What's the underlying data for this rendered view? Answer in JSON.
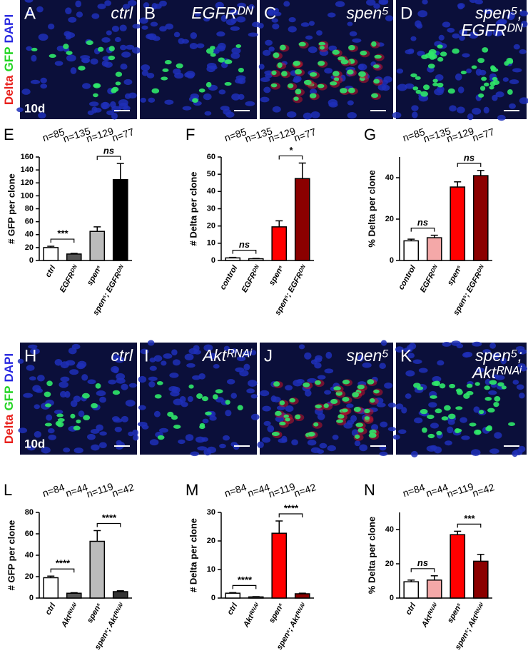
{
  "image_rows": [
    {
      "stain": [
        {
          "text": "Delta",
          "color": "#e8201c"
        },
        {
          "text": "GFP",
          "color": "#22d422"
        },
        {
          "text": "DAPI",
          "color": "#2a2ae0"
        }
      ],
      "timepoint": "10d",
      "panels": [
        {
          "letter": "A",
          "label": [
            "ctrl"
          ]
        },
        {
          "letter": "B",
          "label": [
            "EGFRᴰᴺ"
          ]
        },
        {
          "letter": "C",
          "label": [
            "spen⁵"
          ]
        },
        {
          "letter": "D",
          "label": [
            "spen⁵;",
            "EGFRᴰᴺ"
          ]
        }
      ]
    },
    {
      "stain": [
        {
          "text": "Delta",
          "color": "#e8201c"
        },
        {
          "text": "GFP",
          "color": "#22d422"
        },
        {
          "text": "DAPI",
          "color": "#2a2ae0"
        }
      ],
      "timepoint": "10d",
      "panels": [
        {
          "letter": "H",
          "label": [
            "ctrl"
          ]
        },
        {
          "letter": "I",
          "label": [
            "Aktᴿᴺᴬⁱ"
          ]
        },
        {
          "letter": "J",
          "label": [
            "spen⁵"
          ]
        },
        {
          "letter": "K",
          "label": [
            "spen⁵;",
            "Aktᴿᴺᴬⁱ"
          ]
        }
      ]
    }
  ],
  "chart_data": [
    {
      "type": "bar",
      "panel": "E",
      "ylabel": "# GFP per clone",
      "categories": [
        "ctrl",
        "EGFRᴰᴺ",
        "spen⁵",
        "spen⁵; EGFRᴰᴺ"
      ],
      "values": [
        20,
        10,
        45,
        125
      ],
      "errors": [
        2,
        1,
        7,
        25
      ],
      "colors": [
        "#ffffff",
        "#555555",
        "#bbbbbb",
        "#000000"
      ],
      "sample_sizes": [
        "n=85",
        "n=135",
        "n=129",
        "n=77"
      ],
      "significance": [
        {
          "label": "***",
          "between": [
            "ctrl",
            "EGFRᴰᴺ"
          ]
        },
        {
          "label": "ns",
          "between": [
            "spen⁵",
            "spen⁵; EGFRᴰᴺ"
          ]
        }
      ],
      "ylim": [
        0,
        160
      ],
      "yticks": [
        0,
        20,
        40,
        60,
        80,
        100,
        120,
        140,
        160
      ]
    },
    {
      "type": "bar",
      "panel": "F",
      "ylabel": "# Delta per clone",
      "categories": [
        "control",
        "EGFRᴰᴺ",
        "spen⁵",
        "spen⁵; EGFRᴰᴺ"
      ],
      "values": [
        1.5,
        1,
        19.5,
        47.5
      ],
      "errors": [
        0.3,
        0.2,
        3.5,
        9
      ],
      "colors": [
        "#ffffff",
        "#ffffff",
        "#ff0000",
        "#8b0000"
      ],
      "sample_sizes": [
        "n=85",
        "n=135",
        "n=129",
        "n=77"
      ],
      "significance": [
        {
          "label": "ns",
          "between": [
            "control",
            "EGFRᴰᴺ"
          ]
        },
        {
          "label": "*",
          "between": [
            "spen⁵",
            "spen⁵; EGFRᴰᴺ"
          ]
        }
      ],
      "ylim": [
        0,
        60
      ],
      "yticks": [
        0,
        10,
        20,
        30,
        40,
        50,
        60
      ]
    },
    {
      "type": "bar",
      "panel": "G",
      "ylabel": "% Delta per clone",
      "categories": [
        "control",
        "EGFRᴰᴺ",
        "spen⁵",
        "spen⁵; EGFRᴰᴺ"
      ],
      "values": [
        9.5,
        11,
        35.5,
        41
      ],
      "errors": [
        0.8,
        1.2,
        2.5,
        2.5
      ],
      "colors": [
        "#ffffff",
        "#f4a8a8",
        "#ff0000",
        "#8b0000"
      ],
      "sample_sizes": [
        "n=85",
        "n=135",
        "n=129",
        "n=77"
      ],
      "significance": [
        {
          "label": "ns",
          "between": [
            "control",
            "EGFRᴰᴺ"
          ]
        },
        {
          "label": "ns",
          "between": [
            "spen⁵",
            "spen⁵; EGFRᴰᴺ"
          ]
        }
      ],
      "ylim": [
        0,
        50
      ],
      "yticks": [
        0,
        20,
        40
      ]
    },
    {
      "type": "bar",
      "panel": "L",
      "ylabel": "# GFP per clone",
      "categories": [
        "ctrl",
        "Aktᴿᴺᴬⁱ",
        "spen⁵",
        "spen⁵; Aktᴿᴺᴬⁱ"
      ],
      "values": [
        19,
        4.5,
        53,
        6
      ],
      "errors": [
        1.5,
        0.5,
        10,
        0.8
      ],
      "colors": [
        "#ffffff",
        "#555555",
        "#bbbbbb",
        "#333333"
      ],
      "sample_sizes": [
        "n=84",
        "n=44",
        "n=119",
        "n=42"
      ],
      "significance": [
        {
          "label": "****",
          "between": [
            "ctrl",
            "Aktᴿᴺᴬⁱ"
          ]
        },
        {
          "label": "****",
          "between": [
            "spen⁵",
            "spen⁵; Aktᴿᴺᴬⁱ"
          ]
        }
      ],
      "ylim": [
        0,
        80
      ],
      "yticks": [
        0,
        20,
        40,
        60,
        80
      ]
    },
    {
      "type": "bar",
      "panel": "M",
      "ylabel": "# Delta per clone",
      "categories": [
        "ctrl",
        "Aktᴿᴺᴬⁱ",
        "spen⁵",
        "spen⁵; Aktᴿᴺᴬⁱ"
      ],
      "values": [
        1.7,
        0.4,
        22.7,
        1.5
      ],
      "errors": [
        0.2,
        0.1,
        4.3,
        0.2
      ],
      "colors": [
        "#ffffff",
        "#ffffff",
        "#ff0000",
        "#8b0000"
      ],
      "sample_sizes": [
        "n=84",
        "n=44",
        "n=119",
        "n=42"
      ],
      "significance": [
        {
          "label": "****",
          "between": [
            "ctrl",
            "Aktᴿᴺᴬⁱ"
          ]
        },
        {
          "label": "****",
          "between": [
            "spen⁵",
            "spen⁵; Aktᴿᴺᴬⁱ"
          ]
        }
      ],
      "ylim": [
        0,
        30
      ],
      "yticks": [
        0,
        10,
        20,
        30
      ]
    },
    {
      "type": "bar",
      "panel": "N",
      "ylabel": "% Delta per clone",
      "categories": [
        "ctrl",
        "Aktᴿᴺᴬⁱ",
        "spen⁵",
        "spen⁵; Aktᴿᴺᴬⁱ"
      ],
      "values": [
        9.5,
        10.5,
        37,
        21.5
      ],
      "errors": [
        1,
        2.5,
        2,
        4
      ],
      "colors": [
        "#ffffff",
        "#f4a8a8",
        "#ff0000",
        "#8b0000"
      ],
      "sample_sizes": [
        "n=84",
        "n=44",
        "n=119",
        "n=42"
      ],
      "significance": [
        {
          "label": "ns",
          "between": [
            "ctrl",
            "Aktᴿᴺᴬⁱ"
          ]
        },
        {
          "label": "***",
          "between": [
            "spen⁵",
            "spen⁵; Aktᴿᴺᴬⁱ"
          ]
        }
      ],
      "ylim": [
        0,
        50
      ],
      "yticks": [
        0,
        20,
        40
      ]
    }
  ]
}
